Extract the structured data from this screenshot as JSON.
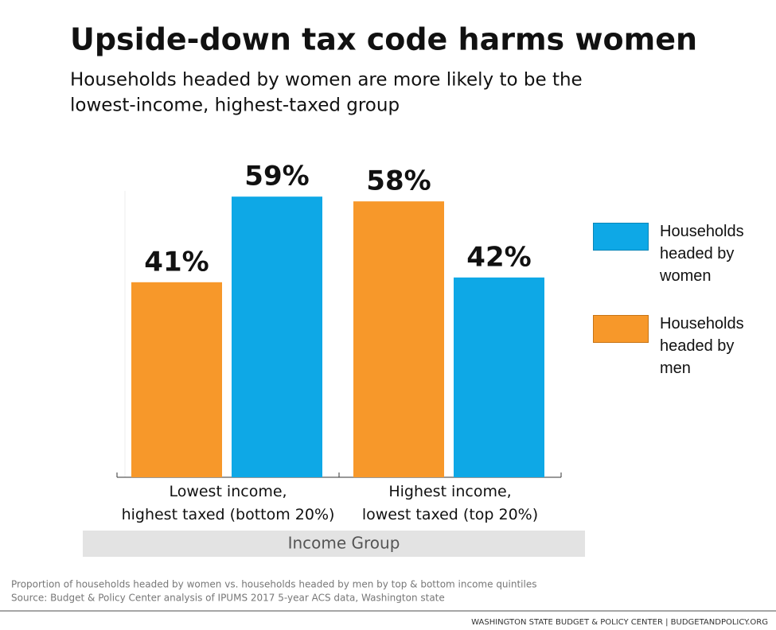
{
  "chart_data": {
    "type": "bar",
    "title": "Upside-down tax code harms women",
    "subtitle": [
      "Households headed by women are more likely to be the",
      "lowest-income, highest-taxed group"
    ],
    "categories": [
      "Lowest income,\nhighest taxed (bottom 20%)",
      "Highest income,\nlowest taxed (top 20%)"
    ],
    "series": [
      {
        "name": "Households headed by women",
        "color": "#0ea8e6",
        "values": [
          59,
          42
        ],
        "value_labels": [
          "59%",
          "42%"
        ]
      },
      {
        "name": "Households headed by men",
        "color": "#f7982a",
        "values": [
          41,
          58
        ],
        "value_labels": [
          "41%",
          "58%"
        ]
      }
    ],
    "x_label": "Income Group",
    "ylim": [
      0,
      65
    ],
    "notes": [
      "Proportion of households headed by women vs. households headed by men by top & bottom income quintiles",
      "Source: Budget & Policy Center analysis of IPUMS 2017 5-year ACS data, Washington state"
    ],
    "footer": "WASHINGTON STATE BUDGET & POLICY CENTER | BUDGETANDPOLICY.ORG"
  }
}
